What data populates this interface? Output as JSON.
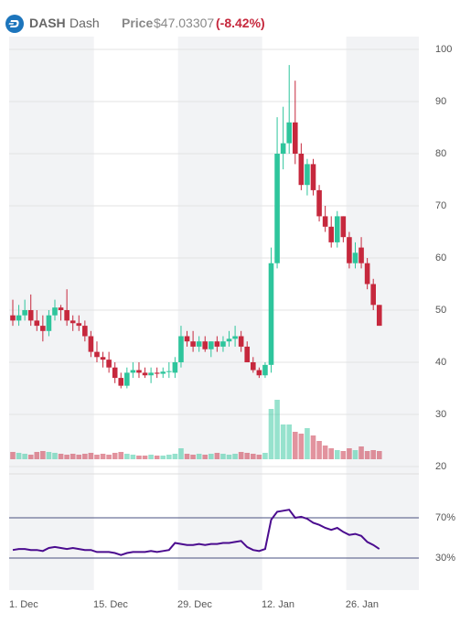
{
  "header": {
    "symbol": "DASH",
    "name": "Dash",
    "price_label": "Price",
    "price": "$47.03307",
    "change": "(-8.42%)"
  },
  "chart_data": {
    "type": "candlestick",
    "up_color": "#2ec59c",
    "down_color": "#c6283d",
    "categories": [
      "1. Dec",
      null,
      null,
      null,
      null,
      null,
      null,
      null,
      null,
      null,
      null,
      null,
      null,
      null,
      "15. Dec",
      null,
      null,
      null,
      null,
      null,
      null,
      null,
      null,
      null,
      null,
      null,
      null,
      null,
      "29. Dec",
      null,
      null,
      null,
      null,
      null,
      null,
      null,
      null,
      null,
      null,
      null,
      null,
      null,
      "12. Jan",
      null,
      null,
      null,
      null,
      null,
      null,
      null,
      null,
      null,
      null,
      null,
      null,
      null,
      "26. Jan",
      null,
      null,
      null,
      null,
      null
    ],
    "candles": [
      {
        "open": 49,
        "high": 52,
        "low": 47,
        "close": 48
      },
      {
        "open": 48,
        "high": 51,
        "low": 47,
        "close": 49
      },
      {
        "open": 49,
        "high": 52,
        "low": 48,
        "close": 50
      },
      {
        "open": 50,
        "high": 53,
        "low": 47,
        "close": 48
      },
      {
        "open": 48,
        "high": 50,
        "low": 46,
        "close": 47
      },
      {
        "open": 47,
        "high": 49,
        "low": 44,
        "close": 46
      },
      {
        "open": 46,
        "high": 50,
        "low": 45,
        "close": 49
      },
      {
        "open": 49,
        "high": 52,
        "low": 48,
        "close": 50.5
      },
      {
        "open": 50.5,
        "high": 51,
        "low": 48,
        "close": 50
      },
      {
        "open": 50,
        "high": 54,
        "low": 47,
        "close": 48
      },
      {
        "open": 48,
        "high": 49,
        "low": 46,
        "close": 47.5
      },
      {
        "open": 47.5,
        "high": 49,
        "low": 46,
        "close": 47
      },
      {
        "open": 47,
        "high": 48,
        "low": 44,
        "close": 45
      },
      {
        "open": 45,
        "high": 46,
        "low": 41,
        "close": 42
      },
      {
        "open": 42,
        "high": 44,
        "low": 40,
        "close": 41
      },
      {
        "open": 41,
        "high": 42,
        "low": 39,
        "close": 40.5
      },
      {
        "open": 40.5,
        "high": 42,
        "low": 38,
        "close": 39
      },
      {
        "open": 39,
        "high": 40,
        "low": 36,
        "close": 37
      },
      {
        "open": 37,
        "high": 38,
        "low": 35,
        "close": 35.5
      },
      {
        "open": 35.5,
        "high": 39,
        "low": 35,
        "close": 38
      },
      {
        "open": 38,
        "high": 40,
        "low": 37,
        "close": 38.5
      },
      {
        "open": 38.5,
        "high": 40,
        "low": 37,
        "close": 38
      },
      {
        "open": 38,
        "high": 39,
        "low": 37,
        "close": 37.5
      },
      {
        "open": 37.5,
        "high": 39,
        "low": 36,
        "close": 38
      },
      {
        "open": 38,
        "high": 39,
        "low": 37,
        "close": 37.8
      },
      {
        "open": 37.8,
        "high": 39,
        "low": 37,
        "close": 38.2
      },
      {
        "open": 38.2,
        "high": 40,
        "low": 37,
        "close": 38.3
      },
      {
        "open": 38,
        "high": 41,
        "low": 37,
        "close": 40
      },
      {
        "open": 40,
        "high": 47,
        "low": 39,
        "close": 45
      },
      {
        "open": 45,
        "high": 46,
        "low": 43,
        "close": 44
      },
      {
        "open": 44,
        "high": 46,
        "low": 42,
        "close": 43
      },
      {
        "open": 43,
        "high": 45,
        "low": 42,
        "close": 44
      },
      {
        "open": 44,
        "high": 45,
        "low": 42,
        "close": 42.5
      },
      {
        "open": 42.5,
        "high": 44,
        "low": 41,
        "close": 44
      },
      {
        "open": 44,
        "high": 45,
        "low": 42,
        "close": 43
      },
      {
        "open": 43,
        "high": 45,
        "low": 42,
        "close": 44
      },
      {
        "open": 44,
        "high": 46,
        "low": 43,
        "close": 44.5
      },
      {
        "open": 44.5,
        "high": 47,
        "low": 43,
        "close": 45
      },
      {
        "open": 45,
        "high": 46,
        "low": 42,
        "close": 43
      },
      {
        "open": 43,
        "high": 44,
        "low": 40,
        "close": 40
      },
      {
        "open": 40,
        "high": 41,
        "low": 38,
        "close": 38.5
      },
      {
        "open": 38.5,
        "high": 39,
        "low": 37,
        "close": 37.5
      },
      {
        "open": 37.5,
        "high": 40,
        "low": 37,
        "close": 39.5
      },
      {
        "open": 39.5,
        "high": 62,
        "low": 38,
        "close": 59
      },
      {
        "open": 59,
        "high": 87,
        "low": 58,
        "close": 80
      },
      {
        "open": 80,
        "high": 89,
        "low": 77,
        "close": 82
      },
      {
        "open": 82,
        "high": 97,
        "low": 80,
        "close": 86
      },
      {
        "open": 86,
        "high": 94,
        "low": 78,
        "close": 80
      },
      {
        "open": 80,
        "high": 82,
        "low": 73,
        "close": 74
      },
      {
        "open": 74,
        "high": 79,
        "low": 72,
        "close": 78
      },
      {
        "open": 78,
        "high": 79,
        "low": 72,
        "close": 73
      },
      {
        "open": 73,
        "high": 74,
        "low": 67,
        "close": 68
      },
      {
        "open": 68,
        "high": 70,
        "low": 65,
        "close": 66
      },
      {
        "open": 66,
        "high": 68,
        "low": 62,
        "close": 63
      },
      {
        "open": 63,
        "high": 69,
        "low": 62,
        "close": 68
      },
      {
        "open": 68,
        "high": 68,
        "low": 63,
        "close": 64
      },
      {
        "open": 64,
        "high": 65,
        "low": 58,
        "close": 59
      },
      {
        "open": 59,
        "high": 63,
        "low": 58,
        "close": 61
      },
      {
        "open": 62,
        "high": 64,
        "low": 58,
        "close": 59
      },
      {
        "open": 59,
        "high": 60,
        "low": 54,
        "close": 55
      },
      {
        "open": 55,
        "high": 56,
        "low": 50,
        "close": 51
      },
      {
        "open": 51,
        "high": 51,
        "low": 47,
        "close": 47
      }
    ],
    "volume": [
      8,
      7,
      6,
      5,
      8,
      9,
      8,
      7,
      6,
      5,
      6,
      5,
      6,
      7,
      5,
      6,
      5,
      7,
      8,
      6,
      5,
      4,
      4,
      5,
      4,
      4,
      5,
      6,
      12,
      6,
      5,
      6,
      5,
      6,
      7,
      6,
      5,
      6,
      8,
      7,
      6,
      5,
      7,
      55,
      65,
      38,
      38,
      30,
      28,
      34,
      26,
      20,
      15,
      12,
      10,
      9,
      12,
      10,
      14,
      9,
      10,
      9
    ],
    "ylim": [
      20,
      100
    ],
    "yticks": [
      20,
      30,
      40,
      50,
      60,
      70,
      80,
      90,
      100
    ],
    "grid": true,
    "rsi": {
      "color": "#4b0c8f",
      "values": [
        38,
        39,
        39,
        38,
        38,
        37,
        40,
        41,
        40,
        39,
        40,
        39,
        38,
        38,
        36,
        36,
        36,
        35,
        33,
        35,
        36,
        36,
        36,
        37,
        36,
        37,
        38,
        45,
        44,
        43,
        43,
        44,
        43,
        44,
        44,
        45,
        45,
        46,
        47,
        41,
        38,
        37,
        39,
        68,
        76,
        77,
        78,
        70,
        71,
        69,
        65,
        63,
        60,
        58,
        60,
        56,
        53,
        54,
        52,
        46,
        43,
        39
      ],
      "ylim": [
        0,
        100
      ],
      "yticks": [
        {
          "value": 70,
          "label": "70%"
        },
        {
          "value": 30,
          "label": "30%"
        }
      ]
    }
  }
}
